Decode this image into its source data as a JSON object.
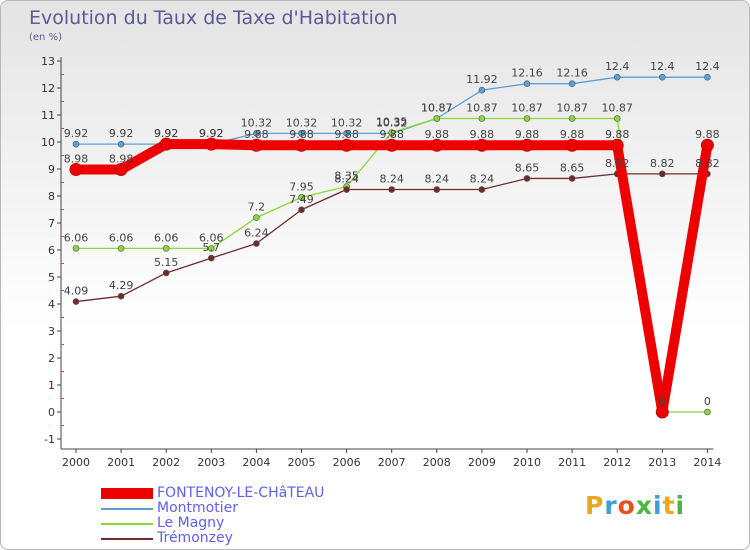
{
  "title": "Evolution du Taux de Taxe d'Habitation",
  "unit": "(en %)",
  "watermark": "Proxiti",
  "chart_data": {
    "type": "line",
    "x": [
      "2000",
      "2001",
      "2002",
      "2003",
      "2004",
      "2005",
      "2006",
      "2007",
      "2008",
      "2009",
      "2010",
      "2011",
      "2012",
      "2013",
      "2014"
    ],
    "ylim": [
      -1,
      13
    ],
    "yticks": [
      -1,
      0,
      1,
      2,
      3,
      4,
      5,
      6,
      7,
      8,
      9,
      10,
      11,
      12,
      13
    ],
    "grid": false,
    "legend_position": "bottom-left",
    "series": [
      {
        "name": "FONTENOY-LE-CHâTEAU",
        "color": "#ee0000",
        "values": [
          8.98,
          8.98,
          9.92,
          9.92,
          9.88,
          9.88,
          9.88,
          9.88,
          9.88,
          9.88,
          9.88,
          9.88,
          9.88,
          0,
          9.88
        ],
        "labels": [
          "8.98",
          "8.98",
          "9.92",
          "9.92",
          "9.88",
          "9.88",
          "9.88",
          "9.88",
          "9.88",
          "9.88",
          "9.88",
          "9.88",
          "9.88",
          "0",
          "9.88"
        ]
      },
      {
        "name": "Montmotier",
        "color": "#5aa0d8",
        "values": [
          9.92,
          9.92,
          9.92,
          9.92,
          10.32,
          10.32,
          10.32,
          10.32,
          10.87,
          11.92,
          12.16,
          12.16,
          12.4,
          12.4,
          12.4
        ],
        "labels": [
          "9.92",
          "9.92",
          "9.92",
          "9.92",
          "10.32",
          "10.32",
          "10.32",
          "10.32",
          "10.87",
          "11.92",
          "12.16",
          "12.16",
          "12.4",
          "12.4",
          "12.4"
        ]
      },
      {
        "name": "Le Magny",
        "color": "#88d838",
        "values": [
          6.06,
          6.06,
          6.06,
          6.06,
          7.2,
          7.95,
          8.35,
          10.35,
          10.87,
          10.87,
          10.87,
          10.87,
          10.87,
          0,
          0
        ],
        "labels": [
          "6.06",
          "6.06",
          "6.06",
          "6.06",
          "7.2",
          "7.95",
          "8.35",
          "10.35",
          "10.87",
          "10.87",
          "10.87",
          "10.87",
          "10.87",
          "0",
          "0"
        ]
      },
      {
        "name": "Trémonzey",
        "color": "#702c2c",
        "values": [
          4.09,
          4.29,
          5.15,
          5.7,
          6.24,
          7.49,
          8.24,
          8.24,
          8.24,
          8.24,
          8.65,
          8.65,
          8.82,
          8.82,
          8.82
        ],
        "labels": [
          "4.09",
          "4.29",
          "5.15",
          "5.7",
          "6.24",
          "7.49",
          "8.24",
          "8.24",
          "8.24",
          "8.24",
          "8.65",
          "8.65",
          "8.82",
          "8.82",
          "8.82"
        ]
      }
    ]
  }
}
